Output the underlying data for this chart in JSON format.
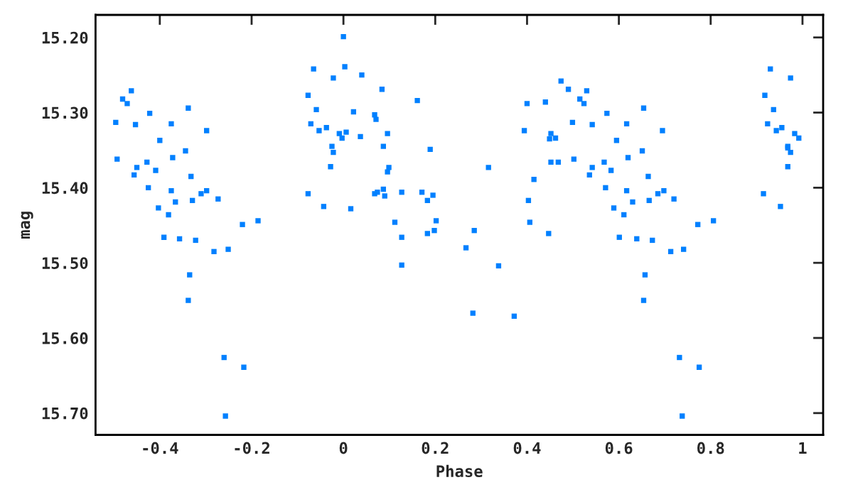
{
  "chart_data": {
    "type": "scatter",
    "xlabel": "Phase",
    "ylabel": "mag",
    "marker": "square",
    "grid": false,
    "legend": false,
    "xlim": [
      -0.54,
      1.045
    ],
    "ylim": [
      15.729,
      15.17
    ],
    "xticks": [
      -0.4,
      -0.2,
      0,
      0.2,
      0.4,
      0.6,
      0.8,
      1
    ],
    "yticks": [
      {
        "value": 15.2,
        "label": "15.20"
      },
      {
        "value": 15.3,
        "label": "15.30"
      },
      {
        "value": 15.4,
        "label": "15.40"
      },
      {
        "value": 15.5,
        "label": "15.50"
      },
      {
        "value": 15.6,
        "label": "15.60"
      },
      {
        "value": 15.7,
        "label": "15.70"
      }
    ],
    "series": [
      {
        "color": "#0080ff",
        "x": [
          -0.496,
          -0.481,
          -0.471,
          -0.462,
          -0.453,
          -0.422,
          -0.493,
          -0.45,
          -0.456,
          -0.428,
          -0.409,
          -0.4,
          -0.425,
          -0.375,
          -0.372,
          -0.338,
          -0.344,
          -0.332,
          -0.298,
          -0.375,
          -0.366,
          -0.403,
          -0.381,
          -0.329,
          -0.31,
          -0.298,
          -0.273,
          -0.391,
          -0.357,
          -0.322,
          -0.282,
          -0.251,
          -0.22,
          -0.186,
          -0.335,
          -0.338,
          -0.26,
          -0.217,
          -0.257,
          0,
          -0.065,
          0.003,
          -0.022,
          0.04,
          -0.077,
          0.084,
          -0.059,
          0.022,
          0.068,
          0.071,
          -0.071,
          -0.037,
          -0.053,
          -0.009,
          -0.003,
          0.006,
          0.037,
          0.096,
          -0.025,
          -0.022,
          0.087,
          -0.028,
          0.099,
          0.096,
          0.161,
          0.189,
          -0.077,
          -0.043,
          0.016,
          0.068,
          0.074,
          0.087,
          0.09,
          0.127,
          0.171,
          0.195,
          0.183,
          0.112,
          0.127,
          0.127,
          0.202,
          0.198,
          0.183,
          0.285,
          0.267,
          0.316,
          0.338,
          0.282,
          0.372,
          0.4,
          0.394,
          0.415,
          0.403,
          0.406,
          0.447,
          0.44,
          0.452,
          0.449,
          0.462,
          0.452,
          0.468,
          0.474,
          0.49,
          0.515,
          0.524,
          0.53,
          0.499,
          0.542,
          0.574,
          0.502,
          0.542,
          0.536,
          0.568,
          0.583,
          0.595,
          0.571,
          0.617,
          0.62,
          0.654,
          0.651,
          0.664,
          0.695,
          0.617,
          0.63,
          0.589,
          0.611,
          0.666,
          0.685,
          0.698,
          0.72,
          0.601,
          0.639,
          0.673,
          0.713,
          0.741,
          0.772,
          0.806,
          0.657,
          0.654,
          0.732,
          0.775,
          0.738,
          0.93,
          0.974,
          0.918,
          0.937,
          0.924,
          0.943,
          0.955,
          0.983,
          0.992,
          0.968,
          0.968,
          0.974,
          0.968,
          0.915,
          0.952
        ],
        "values": [
          15.313,
          15.282,
          15.288,
          15.271,
          15.316,
          15.301,
          15.362,
          15.373,
          15.383,
          15.366,
          15.377,
          15.337,
          15.4,
          15.315,
          15.36,
          15.294,
          15.351,
          15.385,
          15.324,
          15.404,
          15.419,
          15.427,
          15.436,
          15.417,
          15.408,
          15.404,
          15.415,
          15.466,
          15.468,
          15.47,
          15.485,
          15.482,
          15.449,
          15.444,
          15.516,
          15.55,
          15.626,
          15.639,
          15.704,
          15.199,
          15.242,
          15.239,
          15.254,
          15.25,
          15.277,
          15.269,
          15.296,
          15.299,
          15.303,
          15.309,
          15.315,
          15.32,
          15.324,
          15.328,
          15.334,
          15.326,
          15.332,
          15.328,
          15.345,
          15.353,
          15.345,
          15.372,
          15.373,
          15.379,
          15.284,
          15.349,
          15.408,
          15.425,
          15.428,
          15.408,
          15.406,
          15.402,
          15.411,
          15.406,
          15.406,
          15.41,
          15.417,
          15.446,
          15.466,
          15.503,
          15.444,
          15.457,
          15.461,
          15.457,
          15.48,
          15.373,
          15.504,
          15.567,
          15.571,
          15.288,
          15.324,
          15.389,
          15.417,
          15.446,
          15.461,
          15.286,
          15.328,
          15.335,
          15.334,
          15.366,
          15.366,
          15.258,
          15.269,
          15.282,
          15.288,
          15.271,
          15.313,
          15.316,
          15.301,
          15.362,
          15.373,
          15.383,
          15.366,
          15.377,
          15.337,
          15.4,
          15.315,
          15.36,
          15.294,
          15.351,
          15.385,
          15.324,
          15.404,
          15.419,
          15.427,
          15.436,
          15.417,
          15.408,
          15.404,
          15.415,
          15.466,
          15.468,
          15.47,
          15.485,
          15.482,
          15.449,
          15.444,
          15.516,
          15.55,
          15.626,
          15.639,
          15.704,
          15.242,
          15.254,
          15.277,
          15.296,
          15.315,
          15.324,
          15.32,
          15.328,
          15.334,
          15.345,
          15.347,
          15.353,
          15.372,
          15.408,
          15.425
        ]
      }
    ]
  }
}
